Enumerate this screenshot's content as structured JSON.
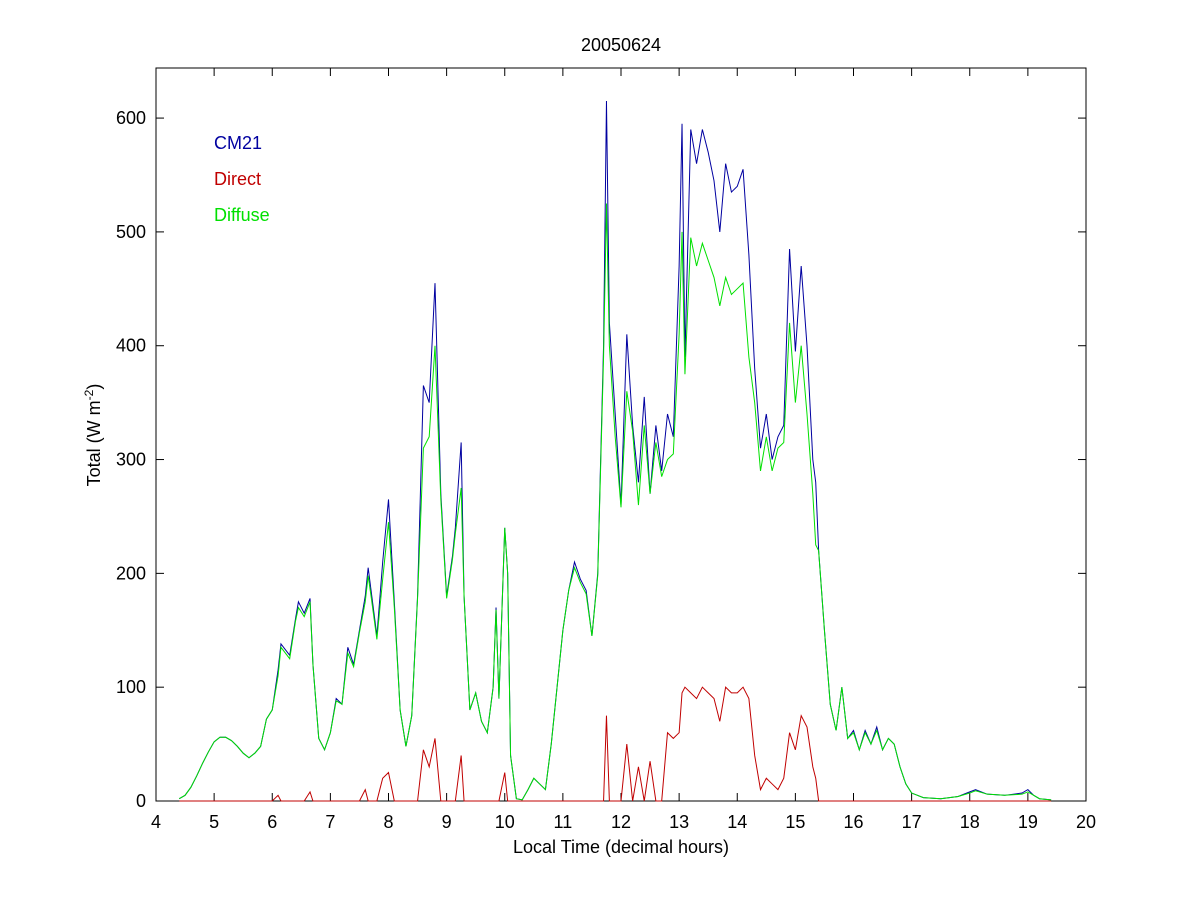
{
  "chart_data": {
    "type": "line",
    "title": "20050624",
    "xlabel": "Local Time (decimal hours)",
    "ylabel_parts": [
      "Total (W m",
      "-2",
      ")"
    ],
    "x": [
      4.4,
      4.5,
      4.6,
      4.7,
      4.8,
      4.9,
      5.0,
      5.1,
      5.2,
      5.3,
      5.4,
      5.5,
      5.6,
      5.7,
      5.8,
      5.9,
      6.0,
      6.1,
      6.15,
      6.3,
      6.4,
      6.45,
      6.55,
      6.65,
      6.7,
      6.8,
      6.9,
      7.0,
      7.1,
      7.2,
      7.3,
      7.4,
      7.5,
      7.6,
      7.65,
      7.7,
      7.8,
      7.9,
      8.0,
      8.1,
      8.2,
      8.3,
      8.4,
      8.5,
      8.6,
      8.7,
      8.8,
      8.9,
      9.0,
      9.1,
      9.15,
      9.25,
      9.3,
      9.4,
      9.5,
      9.6,
      9.7,
      9.8,
      9.85,
      9.9,
      10.0,
      10.05,
      10.1,
      10.2,
      10.3,
      10.4,
      10.5,
      10.6,
      10.7,
      10.8,
      10.9,
      11.0,
      11.1,
      11.2,
      11.3,
      11.4,
      11.5,
      11.6,
      11.7,
      11.75,
      11.8,
      11.9,
      12.0,
      12.1,
      12.2,
      12.3,
      12.4,
      12.5,
      12.6,
      12.7,
      12.8,
      12.9,
      13.0,
      13.05,
      13.1,
      13.2,
      13.3,
      13.4,
      13.5,
      13.6,
      13.7,
      13.8,
      13.9,
      14.0,
      14.1,
      14.2,
      14.3,
      14.4,
      14.5,
      14.6,
      14.7,
      14.8,
      14.9,
      15.0,
      15.1,
      15.2,
      15.3,
      15.35,
      15.4,
      15.5,
      15.6,
      15.7,
      15.8,
      15.9,
      16.0,
      16.1,
      16.2,
      16.3,
      16.4,
      16.5,
      16.6,
      16.7,
      16.8,
      16.9,
      17.0,
      17.2,
      17.5,
      17.8,
      18.0,
      18.1,
      18.3,
      18.6,
      18.9,
      19.0,
      19.1,
      19.2,
      19.4
    ],
    "series": [
      {
        "name": "CM21",
        "color": "#0000a0",
        "values": [
          2,
          5,
          12,
          22,
          33,
          43,
          52,
          56,
          56,
          53,
          48,
          42,
          38,
          42,
          48,
          72,
          80,
          115,
          138,
          128,
          160,
          175,
          165,
          178,
          120,
          55,
          45,
          60,
          90,
          85,
          135,
          120,
          150,
          180,
          205,
          185,
          145,
          210,
          265,
          175,
          80,
          48,
          75,
          180,
          365,
          350,
          455,
          270,
          180,
          215,
          240,
          315,
          180,
          80,
          95,
          70,
          60,
          100,
          170,
          90,
          240,
          200,
          40,
          2,
          1,
          10,
          20,
          15,
          10,
          50,
          100,
          150,
          185,
          210,
          195,
          185,
          145,
          200,
          400,
          615,
          420,
          340,
          260,
          410,
          330,
          280,
          355,
          270,
          330,
          290,
          340,
          320,
          470,
          595,
          390,
          590,
          560,
          590,
          570,
          545,
          500,
          560,
          535,
          540,
          555,
          480,
          380,
          310,
          340,
          300,
          320,
          330,
          485,
          395,
          470,
          400,
          300,
          280,
          220,
          150,
          85,
          62,
          100,
          55,
          62,
          45,
          62,
          50,
          65,
          45,
          55,
          50,
          30,
          15,
          7,
          3,
          2,
          4,
          8,
          10,
          6,
          5,
          7,
          10,
          5,
          2,
          1
        ]
      },
      {
        "name": "Direct",
        "color": "#c00000",
        "values": [
          0,
          0,
          0,
          0,
          0,
          0,
          0,
          0,
          0,
          0,
          0,
          0,
          0,
          0,
          0,
          0,
          0,
          5,
          0,
          0,
          0,
          0,
          0,
          8,
          0,
          0,
          0,
          0,
          0,
          0,
          0,
          0,
          0,
          10,
          0,
          0,
          0,
          20,
          25,
          0,
          0,
          0,
          0,
          0,
          45,
          30,
          55,
          0,
          0,
          0,
          0,
          40,
          0,
          0,
          0,
          0,
          0,
          0,
          0,
          0,
          25,
          0,
          0,
          0,
          0,
          0,
          0,
          0,
          0,
          0,
          0,
          0,
          0,
          0,
          0,
          0,
          0,
          0,
          0,
          75,
          0,
          0,
          0,
          50,
          0,
          30,
          0,
          35,
          0,
          0,
          60,
          55,
          60,
          95,
          100,
          95,
          90,
          100,
          95,
          90,
          70,
          100,
          95,
          95,
          100,
          90,
          40,
          10,
          20,
          15,
          10,
          20,
          60,
          45,
          75,
          65,
          30,
          20,
          0,
          0,
          0,
          0,
          0,
          0,
          0,
          0,
          0,
          0,
          0,
          0,
          0,
          0,
          0,
          0,
          0,
          0,
          0,
          0,
          0,
          0,
          0,
          0,
          0,
          0,
          0,
          0,
          0
        ]
      },
      {
        "name": "Diffuse",
        "color": "#00e000",
        "values": [
          2,
          5,
          12,
          22,
          33,
          43,
          52,
          56,
          56,
          53,
          48,
          42,
          38,
          42,
          48,
          72,
          80,
          110,
          135,
          125,
          158,
          170,
          162,
          175,
          120,
          55,
          45,
          60,
          88,
          85,
          130,
          118,
          148,
          175,
          198,
          180,
          142,
          195,
          245,
          170,
          80,
          48,
          75,
          178,
          310,
          320,
          400,
          265,
          178,
          212,
          235,
          275,
          180,
          80,
          95,
          70,
          60,
          100,
          168,
          90,
          240,
          200,
          40,
          2,
          1,
          10,
          20,
          15,
          10,
          50,
          100,
          150,
          185,
          205,
          192,
          182,
          145,
          198,
          390,
          525,
          400,
          320,
          258,
          360,
          325,
          260,
          330,
          270,
          315,
          285,
          300,
          305,
          410,
          500,
          375,
          495,
          470,
          490,
          475,
          460,
          435,
          460,
          445,
          450,
          455,
          390,
          350,
          290,
          320,
          290,
          310,
          315,
          420,
          350,
          400,
          340,
          270,
          225,
          220,
          150,
          85,
          62,
          100,
          55,
          60,
          45,
          60,
          50,
          62,
          45,
          55,
          50,
          30,
          15,
          7,
          3,
          2,
          4,
          7,
          9,
          6,
          5,
          6,
          8,
          5,
          2,
          1
        ]
      }
    ],
    "xlim": [
      4,
      20
    ],
    "ylim": [
      0,
      644
    ],
    "xticks": [
      4,
      5,
      6,
      7,
      8,
      9,
      10,
      11,
      12,
      13,
      14,
      15,
      16,
      17,
      18,
      19,
      20
    ],
    "yticks": [
      0,
      100,
      200,
      300,
      400,
      500,
      600
    ]
  }
}
